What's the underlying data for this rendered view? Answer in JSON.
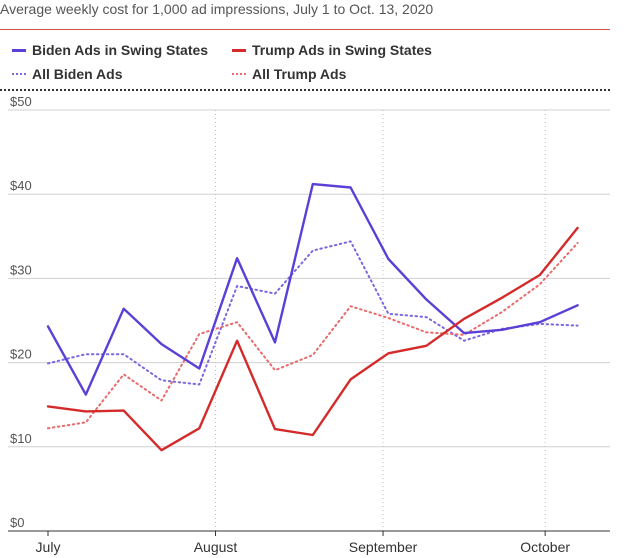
{
  "subtitle": "Average weekly cost for 1,000 ad impressions, July 1 to Oct. 13, 2020",
  "colors": {
    "biden": "#5b3fd6",
    "trump": "#d42a2a",
    "trump_dotted": "#e86a6a",
    "rule": "#d9534f",
    "grid": "#d0d0d0"
  },
  "chart_data": {
    "type": "line",
    "title": "",
    "xlabel": "",
    "ylabel": "",
    "ylim": [
      0,
      50
    ],
    "yticks": [
      {
        "value": 50,
        "label": "$50"
      },
      {
        "value": 40,
        "label": "$40"
      },
      {
        "value": 30,
        "label": "$30"
      },
      {
        "value": 20,
        "label": "$20"
      },
      {
        "value": 10,
        "label": "$10"
      },
      {
        "value": 0,
        "label": "$0"
      }
    ],
    "xlim": [
      "2020-07-01",
      "2020-10-13"
    ],
    "xticks": [
      {
        "date": "2020-07-01",
        "label": "July",
        "gridline": false
      },
      {
        "date": "2020-08-01",
        "label": "August",
        "gridline": true
      },
      {
        "date": "2020-09-01",
        "label": "September",
        "gridline": true
      },
      {
        "date": "2020-10-01",
        "label": "October",
        "gridline": true
      }
    ],
    "grid": true,
    "legend_position": "top",
    "series": [
      {
        "name": "Biden Ads in Swing States",
        "style": "solid",
        "color": "#5b3fd6",
        "points": [
          [
            "2020-07-01",
            24.3
          ],
          [
            "2020-07-08",
            16.2
          ],
          [
            "2020-07-15",
            26.4
          ],
          [
            "2020-07-22",
            22.2
          ],
          [
            "2020-07-29",
            19.3
          ],
          [
            "2020-08-05",
            32.4
          ],
          [
            "2020-08-12",
            22.4
          ],
          [
            "2020-08-19",
            41.2
          ],
          [
            "2020-08-26",
            40.8
          ],
          [
            "2020-09-02",
            32.3
          ],
          [
            "2020-09-09",
            27.5
          ],
          [
            "2020-09-16",
            23.5
          ],
          [
            "2020-09-23",
            23.9
          ],
          [
            "2020-09-30",
            24.8
          ],
          [
            "2020-10-07",
            26.8
          ]
        ]
      },
      {
        "name": "Trump Ads in Swing States",
        "style": "solid",
        "color": "#d42a2a",
        "points": [
          [
            "2020-07-01",
            14.8
          ],
          [
            "2020-07-08",
            14.2
          ],
          [
            "2020-07-15",
            14.3
          ],
          [
            "2020-07-22",
            9.6
          ],
          [
            "2020-07-29",
            12.2
          ],
          [
            "2020-08-05",
            22.6
          ],
          [
            "2020-08-12",
            12.1
          ],
          [
            "2020-08-19",
            11.4
          ],
          [
            "2020-08-26",
            18.0
          ],
          [
            "2020-09-02",
            21.1
          ],
          [
            "2020-09-09",
            22.0
          ],
          [
            "2020-09-16",
            25.2
          ],
          [
            "2020-09-23",
            27.7
          ],
          [
            "2020-09-30",
            30.4
          ],
          [
            "2020-10-07",
            36.0
          ]
        ]
      },
      {
        "name": "All Biden Ads",
        "style": "dotted",
        "color": "#7a68e0",
        "points": [
          [
            "2020-07-01",
            19.9
          ],
          [
            "2020-07-08",
            21.0
          ],
          [
            "2020-07-15",
            21.0
          ],
          [
            "2020-07-22",
            17.9
          ],
          [
            "2020-07-29",
            17.4
          ],
          [
            "2020-08-05",
            29.1
          ],
          [
            "2020-08-12",
            28.2
          ],
          [
            "2020-08-19",
            33.3
          ],
          [
            "2020-08-26",
            34.4
          ],
          [
            "2020-09-02",
            25.8
          ],
          [
            "2020-09-09",
            25.4
          ],
          [
            "2020-09-16",
            22.6
          ],
          [
            "2020-09-23",
            24.0
          ],
          [
            "2020-09-30",
            24.6
          ],
          [
            "2020-10-07",
            24.4
          ]
        ]
      },
      {
        "name": "All Trump Ads",
        "style": "dotted",
        "color": "#e86a6a",
        "points": [
          [
            "2020-07-01",
            12.2
          ],
          [
            "2020-07-08",
            12.9
          ],
          [
            "2020-07-15",
            18.6
          ],
          [
            "2020-07-22",
            15.5
          ],
          [
            "2020-07-29",
            23.4
          ],
          [
            "2020-08-05",
            24.8
          ],
          [
            "2020-08-12",
            19.1
          ],
          [
            "2020-08-19",
            20.9
          ],
          [
            "2020-08-26",
            26.7
          ],
          [
            "2020-09-02",
            25.3
          ],
          [
            "2020-09-09",
            23.6
          ],
          [
            "2020-09-16",
            23.3
          ],
          [
            "2020-09-23",
            26.0
          ],
          [
            "2020-09-30",
            29.3
          ],
          [
            "2020-10-07",
            34.2
          ]
        ]
      }
    ]
  }
}
